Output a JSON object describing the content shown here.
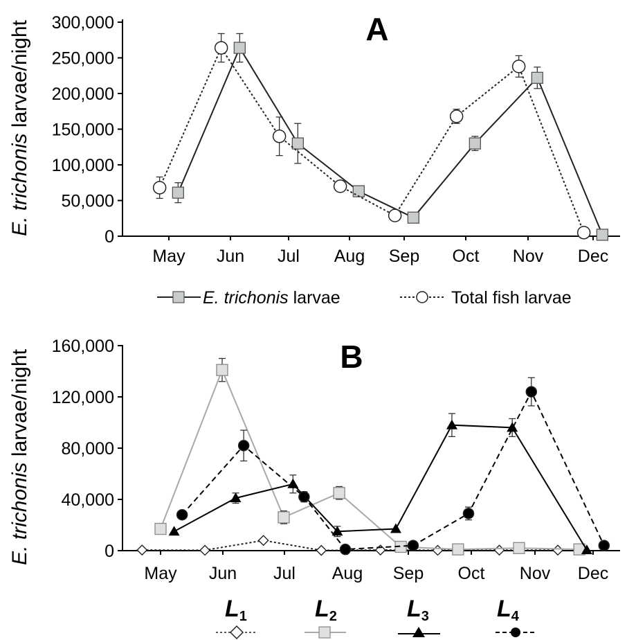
{
  "chart_data": [
    {
      "type": "line",
      "panel_label": "A",
      "ylabel_italic": "E. trichonis",
      "ylabel_rest": " larvae/night",
      "categories": [
        "May",
        "Jun",
        "Jul",
        "Aug",
        "Sep",
        "Oct",
        "Nov",
        "Dec"
      ],
      "ylim": [
        0,
        300000
      ],
      "yticks": [
        "0",
        "50,000",
        "100,000",
        "150,000",
        "200,000",
        "250,000",
        "300,000"
      ],
      "grid": false,
      "legend_position": "bottom",
      "series": [
        {
          "name_italic": "E. trichonis",
          "name_rest": " larvae",
          "style": "solid",
          "marker": "square",
          "color": "#222222",
          "marker_fill": "#c8cccc",
          "offset": 0.15,
          "values": [
            61000,
            264000,
            130000,
            63000,
            26000,
            130000,
            222000,
            2000
          ],
          "err": [
            14000,
            20000,
            28000,
            5000,
            6000,
            10000,
            15000,
            0
          ]
        },
        {
          "name_italic": "",
          "name_rest": "Total fish larvae",
          "style": "dotted",
          "marker": "circle",
          "color": "#222222",
          "marker_fill": "#ffffff",
          "offset": -0.15,
          "values": [
            68000,
            264000,
            140000,
            70000,
            29000,
            168000,
            238000,
            5000
          ],
          "err": [
            15000,
            20000,
            27000,
            6000,
            5000,
            10000,
            15000,
            0
          ]
        }
      ]
    },
    {
      "type": "line",
      "panel_label": "B",
      "ylabel_italic": "E. trichonis",
      "ylabel_rest": " larvae/night",
      "categories": [
        "May",
        "Jun",
        "Jul",
        "Aug",
        "Sep",
        "Oct",
        "Nov",
        "Dec"
      ],
      "ylim": [
        0,
        160000
      ],
      "yticks": [
        "0",
        "40,000",
        "80,000",
        "120,000",
        "160,000"
      ],
      "grid": false,
      "legend_position": "bottom",
      "series": [
        {
          "name_letter": "L",
          "name_sub": "1",
          "style": "dotted",
          "marker": "diamond",
          "color": "#222222",
          "marker_fill": "#ffffff",
          "x": [
            -0.3,
            0.72,
            1.67,
            2.61,
            3.57,
            4.5,
            5.5,
            6.45
          ],
          "values": [
            500,
            300,
            8000,
            200,
            500,
            300,
            400,
            400
          ],
          "err": [
            0,
            0,
            0,
            0,
            0,
            0,
            0,
            0
          ]
        },
        {
          "name_letter": "L",
          "name_sub": "2",
          "style": "solid",
          "marker": "square",
          "color": "#a8a8a8",
          "marker_fill": "#e0e0e0",
          "x": [
            0.0,
            1.0,
            2.0,
            2.9,
            3.9,
            4.83,
            5.82,
            6.8
          ],
          "values": [
            17000,
            141000,
            26000,
            45000,
            3000,
            1000,
            2000,
            1000
          ],
          "err": [
            4000,
            9000,
            5000,
            5000,
            0,
            0,
            0,
            0
          ]
        },
        {
          "name_letter": "L",
          "name_sub": "3",
          "style": "solid",
          "marker": "triangle",
          "color": "#000000",
          "marker_fill": "#000000",
          "x": [
            0.22,
            1.22,
            2.15,
            2.87,
            3.82,
            4.73,
            5.71,
            6.92
          ],
          "values": [
            15000,
            41000,
            52000,
            15000,
            17000,
            98000,
            96000,
            500
          ],
          "err": [
            0,
            4000,
            7000,
            4000,
            0,
            9000,
            7000,
            0
          ]
        },
        {
          "name_letter": "L",
          "name_sub": "4",
          "style": "dashed",
          "marker": "circle",
          "color": "#000000",
          "marker_fill": "#000000",
          "x": [
            0.35,
            1.35,
            2.33,
            3.0,
            4.1,
            5.0,
            6.02,
            7.2
          ],
          "values": [
            28000,
            82000,
            42000,
            1000,
            4000,
            29000,
            124000,
            4000
          ],
          "err": [
            0,
            12000,
            4000,
            0,
            0,
            5000,
            11000,
            0
          ]
        }
      ]
    }
  ]
}
